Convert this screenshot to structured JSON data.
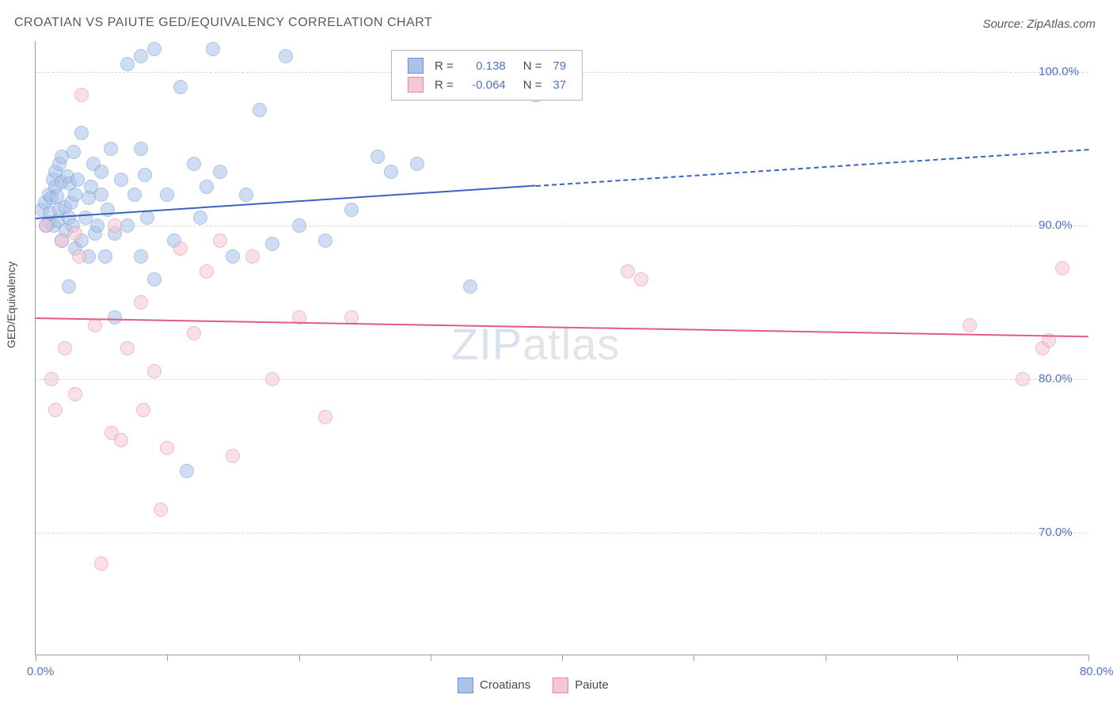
{
  "title": "CROATIAN VS PAIUTE GED/EQUIVALENCY CORRELATION CHART",
  "source_label": "Source: ZipAtlas.com",
  "ylabel": "GED/Equivalency",
  "watermark": {
    "bold": "ZIP",
    "thin": "atlas"
  },
  "plot": {
    "type": "scatter",
    "background_color": "#ffffff",
    "grid_color": "#d8d8d8",
    "axis_color": "#9e9e9e",
    "label_color": "#4f73c4",
    "x": {
      "min": 0.0,
      "max": 80.0,
      "label_min": "0.0%",
      "label_max": "80.0%",
      "ticks_at": [
        0,
        10,
        20,
        30,
        40,
        50,
        60,
        70,
        80
      ]
    },
    "y": {
      "min": 62.0,
      "max": 102.0,
      "grid": [
        70,
        80,
        90,
        100
      ],
      "grid_labels": [
        "70.0%",
        "80.0%",
        "90.0%",
        "100.0%"
      ]
    },
    "marker_radius": 9,
    "marker_border_width": 1.5,
    "marker_opacity": 0.55
  },
  "series": [
    {
      "name": "Croatians",
      "color_fill": "#a9c3e8",
      "color_stroke": "#6f95d4",
      "r_value": "0.138",
      "n_value": "79",
      "trend": {
        "y_at_x0": 90.5,
        "y_at_x80": 95.0,
        "solid_until_x": 38.0,
        "line_color": "#3a62c0",
        "line_width": 2
      },
      "points": [
        [
          0.5,
          91.0
        ],
        [
          0.7,
          91.5
        ],
        [
          0.8,
          90.0
        ],
        [
          1.0,
          92.0
        ],
        [
          1.0,
          90.2
        ],
        [
          1.1,
          90.8
        ],
        [
          1.2,
          91.8
        ],
        [
          1.3,
          93.0
        ],
        [
          1.4,
          90.0
        ],
        [
          1.5,
          92.5
        ],
        [
          1.5,
          93.5
        ],
        [
          1.6,
          91.9
        ],
        [
          1.7,
          90.3
        ],
        [
          1.8,
          94.0
        ],
        [
          1.8,
          91.0
        ],
        [
          2.0,
          89.0
        ],
        [
          2.0,
          92.8
        ],
        [
          2.0,
          94.5
        ],
        [
          2.2,
          91.2
        ],
        [
          2.3,
          89.7
        ],
        [
          2.4,
          93.2
        ],
        [
          2.5,
          86.0
        ],
        [
          2.5,
          90.5
        ],
        [
          2.6,
          92.7
        ],
        [
          2.7,
          91.5
        ],
        [
          2.8,
          90.0
        ],
        [
          2.9,
          94.8
        ],
        [
          3.0,
          92.0
        ],
        [
          3.0,
          88.5
        ],
        [
          3.2,
          93.0
        ],
        [
          3.5,
          89.0
        ],
        [
          3.5,
          96.0
        ],
        [
          3.8,
          90.5
        ],
        [
          4.0,
          91.8
        ],
        [
          4.0,
          88.0
        ],
        [
          4.2,
          92.5
        ],
        [
          4.4,
          94.0
        ],
        [
          4.5,
          89.5
        ],
        [
          4.7,
          90.0
        ],
        [
          5.0,
          92.0
        ],
        [
          5.0,
          93.5
        ],
        [
          5.3,
          88.0
        ],
        [
          5.5,
          91.0
        ],
        [
          5.7,
          95.0
        ],
        [
          6.0,
          89.5
        ],
        [
          6.0,
          84.0
        ],
        [
          6.5,
          93.0
        ],
        [
          7.0,
          90.0
        ],
        [
          7.0,
          100.5
        ],
        [
          7.5,
          92.0
        ],
        [
          8.0,
          95.0
        ],
        [
          8.0,
          88.0
        ],
        [
          8.0,
          101.0
        ],
        [
          8.3,
          93.3
        ],
        [
          8.5,
          90.5
        ],
        [
          9.0,
          86.5
        ],
        [
          9.0,
          101.5
        ],
        [
          10.0,
          92.0
        ],
        [
          10.5,
          89.0
        ],
        [
          11.0,
          99.0
        ],
        [
          11.5,
          74.0
        ],
        [
          12.0,
          94.0
        ],
        [
          12.5,
          90.5
        ],
        [
          13.0,
          92.5
        ],
        [
          13.5,
          101.5
        ],
        [
          14.0,
          93.5
        ],
        [
          15.0,
          88.0
        ],
        [
          16.0,
          92.0
        ],
        [
          17.0,
          97.5
        ],
        [
          18.0,
          88.8
        ],
        [
          19.0,
          101.0
        ],
        [
          20.0,
          90.0
        ],
        [
          22.0,
          89.0
        ],
        [
          24.0,
          91.0
        ],
        [
          26.0,
          94.5
        ],
        [
          27.0,
          93.5
        ],
        [
          29.0,
          94.0
        ],
        [
          33.0,
          86.0
        ],
        [
          38.0,
          98.5
        ]
      ]
    },
    {
      "name": "Paiute",
      "color_fill": "#f5c6d3",
      "color_stroke": "#e388a4",
      "r_value": "-0.064",
      "n_value": "37",
      "trend": {
        "y_at_x0": 84.0,
        "y_at_x80": 82.8,
        "solid_until_x": 80.0,
        "line_color": "#e15b86",
        "line_width": 2
      },
      "points": [
        [
          0.8,
          90.0
        ],
        [
          1.2,
          80.0
        ],
        [
          1.5,
          78.0
        ],
        [
          2.0,
          89.0
        ],
        [
          2.2,
          82.0
        ],
        [
          3.0,
          79.0
        ],
        [
          3.0,
          89.5
        ],
        [
          3.3,
          88.0
        ],
        [
          3.5,
          98.5
        ],
        [
          4.5,
          83.5
        ],
        [
          5.0,
          68.0
        ],
        [
          5.8,
          76.5
        ],
        [
          6.0,
          90.0
        ],
        [
          6.5,
          76.0
        ],
        [
          7.0,
          82.0
        ],
        [
          8.0,
          85.0
        ],
        [
          8.2,
          78.0
        ],
        [
          9.0,
          80.5
        ],
        [
          9.5,
          71.5
        ],
        [
          10.0,
          75.5
        ],
        [
          11.0,
          88.5
        ],
        [
          12.0,
          83.0
        ],
        [
          13.0,
          87.0
        ],
        [
          14.0,
          89.0
        ],
        [
          15.0,
          75.0
        ],
        [
          16.5,
          88.0
        ],
        [
          18.0,
          80.0
        ],
        [
          20.0,
          84.0
        ],
        [
          22.0,
          77.5
        ],
        [
          24.0,
          84.0
        ],
        [
          45.0,
          87.0
        ],
        [
          46.0,
          86.5
        ],
        [
          71.0,
          83.5
        ],
        [
          75.0,
          80.0
        ],
        [
          76.5,
          82.0
        ],
        [
          77.0,
          82.5
        ],
        [
          78.0,
          87.2
        ]
      ]
    }
  ],
  "legend_bottom": [
    {
      "label": "Croatians",
      "fill": "#a9c3e8",
      "stroke": "#6f95d4"
    },
    {
      "label": "Paiute",
      "fill": "#f5c6d3",
      "stroke": "#e388a4"
    }
  ],
  "legend_top_header": {
    "r_label": "R =",
    "n_label": "N ="
  }
}
